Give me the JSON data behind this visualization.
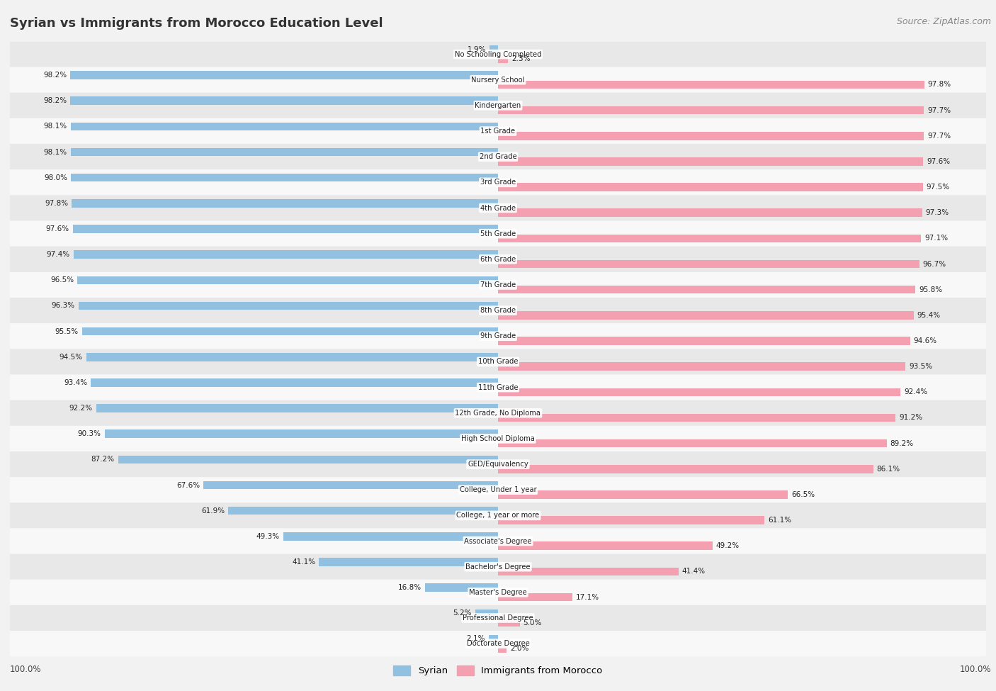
{
  "title": "Syrian vs Immigrants from Morocco Education Level",
  "source": "Source: ZipAtlas.com",
  "categories": [
    "No Schooling Completed",
    "Nursery School",
    "Kindergarten",
    "1st Grade",
    "2nd Grade",
    "3rd Grade",
    "4th Grade",
    "5th Grade",
    "6th Grade",
    "7th Grade",
    "8th Grade",
    "9th Grade",
    "10th Grade",
    "11th Grade",
    "12th Grade, No Diploma",
    "High School Diploma",
    "GED/Equivalency",
    "College, Under 1 year",
    "College, 1 year or more",
    "Associate's Degree",
    "Bachelor's Degree",
    "Master's Degree",
    "Professional Degree",
    "Doctorate Degree"
  ],
  "syrian": [
    1.9,
    98.2,
    98.2,
    98.1,
    98.1,
    98.0,
    97.8,
    97.6,
    97.4,
    96.5,
    96.3,
    95.5,
    94.5,
    93.4,
    92.2,
    90.3,
    87.2,
    67.6,
    61.9,
    49.3,
    41.1,
    16.8,
    5.2,
    2.1
  ],
  "morocco": [
    2.3,
    97.8,
    97.7,
    97.7,
    97.6,
    97.5,
    97.3,
    97.1,
    96.7,
    95.8,
    95.4,
    94.6,
    93.5,
    92.4,
    91.2,
    89.2,
    86.1,
    66.5,
    61.1,
    49.2,
    41.4,
    17.1,
    5.0,
    2.0
  ],
  "syrian_color": "#92c0e0",
  "morocco_color": "#f4a0b0",
  "bg_color": "#f2f2f2",
  "row_color_even": "#e8e8e8",
  "row_color_odd": "#f8f8f8",
  "legend_syrian": "Syrian",
  "legend_morocco": "Immigrants from Morocco"
}
